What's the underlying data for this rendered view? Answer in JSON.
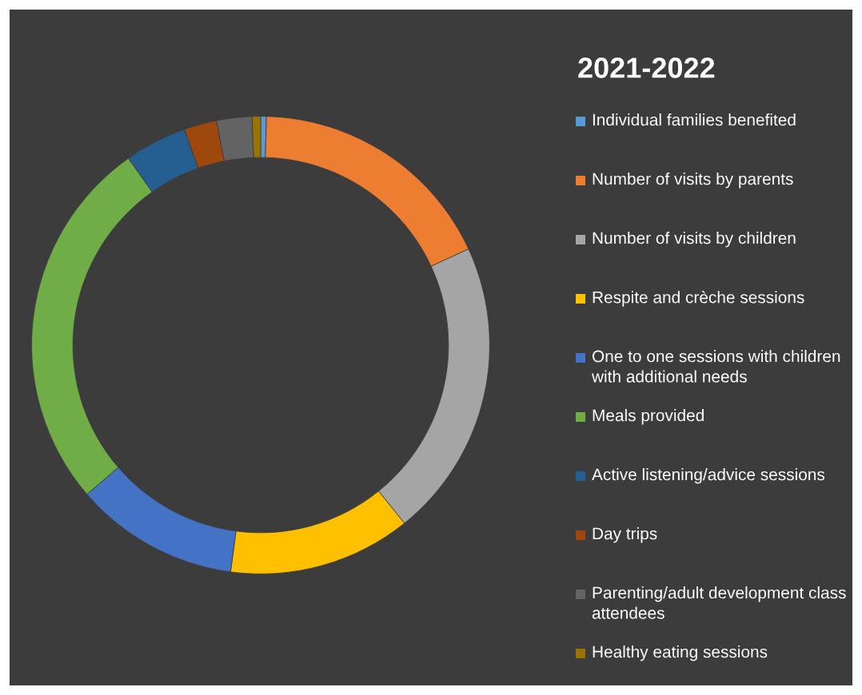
{
  "chart_data": {
    "type": "donut",
    "title": "2021-2022",
    "categories": [
      "Individual families benefited",
      "Number of visits by parents",
      "Number of visits by children",
      "Respite and crèche sessions",
      "One to one sessions with children with additional needs",
      "Meals provided",
      "Active listening/advice sessions",
      "Day trips",
      "Parenting/adult development class attendees",
      "Healthy eating sessions"
    ],
    "values": [
      0.4,
      17.7,
      21.1,
      12.9,
      11.6,
      26.5,
      4.4,
      2.3,
      2.5,
      0.6
    ],
    "colors": [
      "#5b9bd5",
      "#ed7d31",
      "#a5a5a5",
      "#ffc000",
      "#4472c4",
      "#70ad47",
      "#255e91",
      "#9e480e",
      "#636363",
      "#997300"
    ],
    "legend": "right"
  }
}
